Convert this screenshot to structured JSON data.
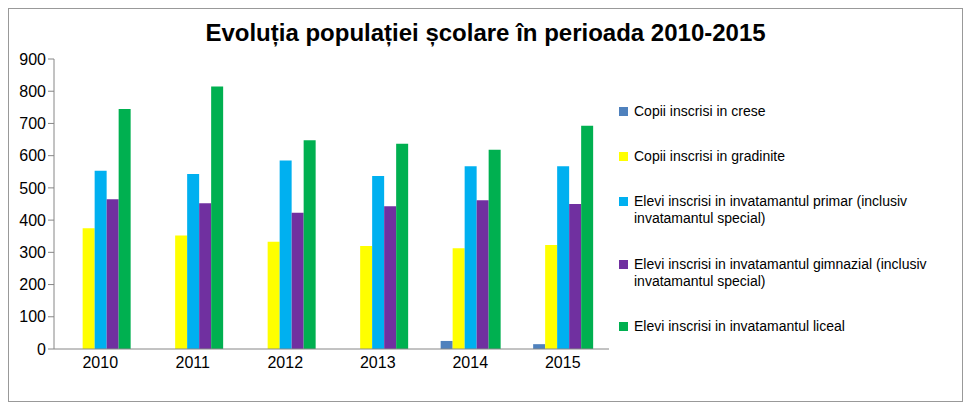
{
  "chart_data": {
    "type": "bar",
    "title": "Evoluția populației școlare în perioada 2010-2015",
    "categories": [
      "2010",
      "2011",
      "2012",
      "2013",
      "2014",
      "2015"
    ],
    "series": [
      {
        "name": "Copii inscrisi in crese",
        "color": "#4f81bd",
        "values": [
          null,
          null,
          null,
          null,
          25,
          15
        ]
      },
      {
        "name": "Copii inscrisi in gradinite",
        "color": "#ffff00",
        "values": [
          375,
          352,
          333,
          320,
          313,
          323
        ]
      },
      {
        "name": "Elevi inscrisi in invatamantul primar (inclusiv invatamantul special)",
        "color": "#00b0f0",
        "values": [
          553,
          543,
          585,
          537,
          567,
          567
        ]
      },
      {
        "name": "Elevi inscrisi in invatamantul gimnazial (inclusiv invatamantul special)",
        "color": "#7030a0",
        "values": [
          465,
          452,
          423,
          443,
          462,
          450
        ]
      },
      {
        "name": "Elevi inscrisi in invatamantul  liceal",
        "color": "#00b050",
        "values": [
          745,
          815,
          648,
          637,
          618,
          693
        ]
      }
    ],
    "ylim": [
      0,
      900
    ],
    "yticks": [
      0,
      100,
      200,
      300,
      400,
      500,
      600,
      700,
      800,
      900
    ],
    "grid": false,
    "legend": "right"
  }
}
